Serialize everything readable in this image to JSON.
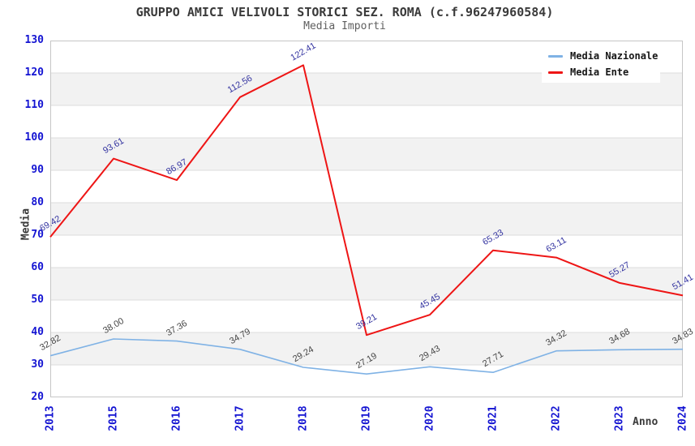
{
  "chart_data": {
    "type": "line",
    "title": "GRUPPO AMICI VELIVOLI STORICI SEZ. ROMA (c.f.96247960584)",
    "subtitle": "Media Importi",
    "xlabel": "Anno",
    "ylabel": "Media",
    "categories": [
      "2013",
      "2015",
      "2016",
      "2017",
      "2018",
      "2019",
      "2020",
      "2021",
      "2022",
      "2023",
      "2024"
    ],
    "ylim": [
      20,
      130
    ],
    "ytick_step": 10,
    "grid": true,
    "band_color": "#f2f2f2",
    "gridline_color": "#dcdcdc",
    "border_color": "#c6c6c6",
    "tick_color": "#1414d2",
    "legend_position": "top-right",
    "series": [
      {
        "name": "Media Nazionale",
        "color": "#7fb2e5",
        "label_color": "#454545",
        "values": [
          32.82,
          38.0,
          37.36,
          34.79,
          29.24,
          27.19,
          29.43,
          27.71,
          34.32,
          34.68,
          34.83
        ]
      },
      {
        "name": "Media Ente",
        "color": "#ee1515",
        "label_color": "#3333a0",
        "values": [
          69.42,
          93.61,
          86.97,
          112.56,
          122.41,
          39.21,
          45.45,
          65.33,
          63.11,
          55.27,
          51.41
        ]
      }
    ]
  }
}
